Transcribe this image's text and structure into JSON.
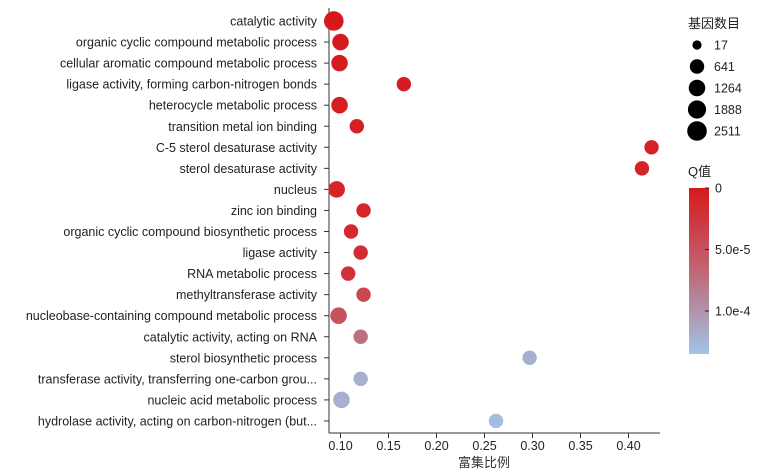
{
  "chart_data": {
    "type": "scatter",
    "xlabel": "富集比例",
    "xlim": [
      0.09,
      0.43
    ],
    "xticks": [
      "0.10",
      "0.15",
      "0.20",
      "0.25",
      "0.30",
      "0.35",
      "0.40"
    ],
    "xtick_values": [
      0.1,
      0.15,
      0.2,
      0.25,
      0.3,
      0.35,
      0.4
    ],
    "points": [
      {
        "term": "catalytic activity",
        "x": 0.093,
        "count": 2511,
        "q": 0.0
      },
      {
        "term": "organic cyclic compound metabolic process",
        "x": 0.1,
        "count": 1264,
        "q": 2e-06
      },
      {
        "term": "cellular aromatic compound metabolic process",
        "x": 0.099,
        "count": 1264,
        "q": 2e-06
      },
      {
        "term": "ligase activity, forming carbon-nitrogen bonds",
        "x": 0.166,
        "count": 641,
        "q": 3e-06
      },
      {
        "term": "heterocycle metabolic process",
        "x": 0.099,
        "count": 1264,
        "q": 4e-06
      },
      {
        "term": "transition metal ion binding",
        "x": 0.117,
        "count": 641,
        "q": 6e-06
      },
      {
        "term": "C-5 sterol desaturase activity",
        "x": 0.424,
        "count": 641,
        "q": 7e-06
      },
      {
        "term": "sterol desaturase activity",
        "x": 0.414,
        "count": 641,
        "q": 8e-06
      },
      {
        "term": "nucleus",
        "x": 0.096,
        "count": 1264,
        "q": 1e-05
      },
      {
        "term": "zinc ion binding",
        "x": 0.124,
        "count": 641,
        "q": 1.2e-05
      },
      {
        "term": "organic cyclic compound biosynthetic process",
        "x": 0.111,
        "count": 641,
        "q": 1.3e-05
      },
      {
        "term": "ligase activity",
        "x": 0.121,
        "count": 641,
        "q": 1.6e-05
      },
      {
        "term": "RNA metabolic process",
        "x": 0.108,
        "count": 641,
        "q": 2e-05
      },
      {
        "term": "methyltransferase activity",
        "x": 0.124,
        "count": 641,
        "q": 4e-05
      },
      {
        "term": "nucleobase-containing compound metabolic process",
        "x": 0.098,
        "count": 1264,
        "q": 5e-05
      },
      {
        "term": "catalytic activity, acting on RNA",
        "x": 0.121,
        "count": 641,
        "q": 7.5e-05
      },
      {
        "term": "sterol biosynthetic process",
        "x": 0.297,
        "count": 641,
        "q": 0.00012
      },
      {
        "term": "transferase activity, transferring one-carbon grou...",
        "x": 0.121,
        "count": 641,
        "q": 0.00012
      },
      {
        "term": "nucleic acid metabolic process",
        "x": 0.101,
        "count": 1264,
        "q": 0.00012
      },
      {
        "term": "hydrolase activity, acting on carbon-nitrogen (but...",
        "x": 0.262,
        "count": 641,
        "q": 0.00013
      }
    ],
    "size_legend": {
      "title": "基因数目",
      "values": [
        17,
        641,
        1264,
        1888,
        2511
      ]
    },
    "color_legend": {
      "title": "Q值",
      "min": 0,
      "max": 0.000135,
      "low_color": "#d7191c",
      "high_color": "#9fc5e8",
      "ticks": [
        {
          "label": "0",
          "value": 0
        },
        {
          "label": "5.0e-5",
          "value": 5e-05
        },
        {
          "label": "1.0e-4",
          "value": 0.0001
        }
      ]
    }
  }
}
